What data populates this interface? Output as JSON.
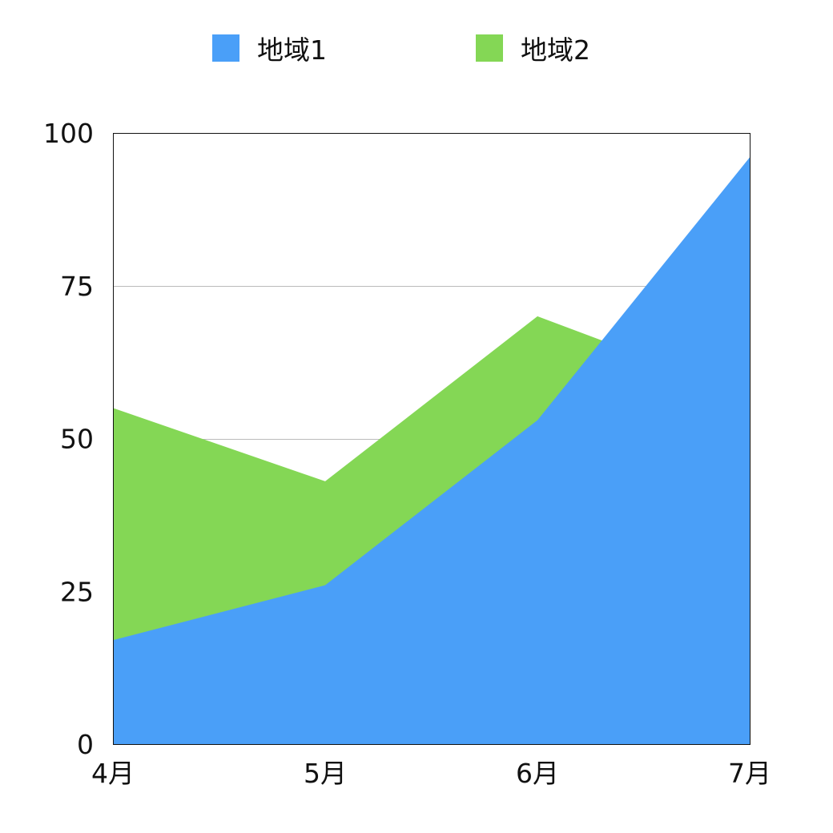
{
  "chart_data": {
    "type": "area",
    "stacked": false,
    "categories": [
      "4月",
      "5月",
      "6月",
      "7月"
    ],
    "series": [
      {
        "name": "地域2",
        "values": [
          55,
          43,
          70,
          57
        ],
        "color": "#84d755"
      },
      {
        "name": "地域1",
        "values": [
          17,
          26,
          53,
          96
        ],
        "color": "#4a9ff8"
      }
    ],
    "yticks": [
      0,
      25,
      50,
      75,
      100
    ],
    "ylim": [
      0,
      100
    ],
    "grid": true,
    "legend_position": "top"
  }
}
